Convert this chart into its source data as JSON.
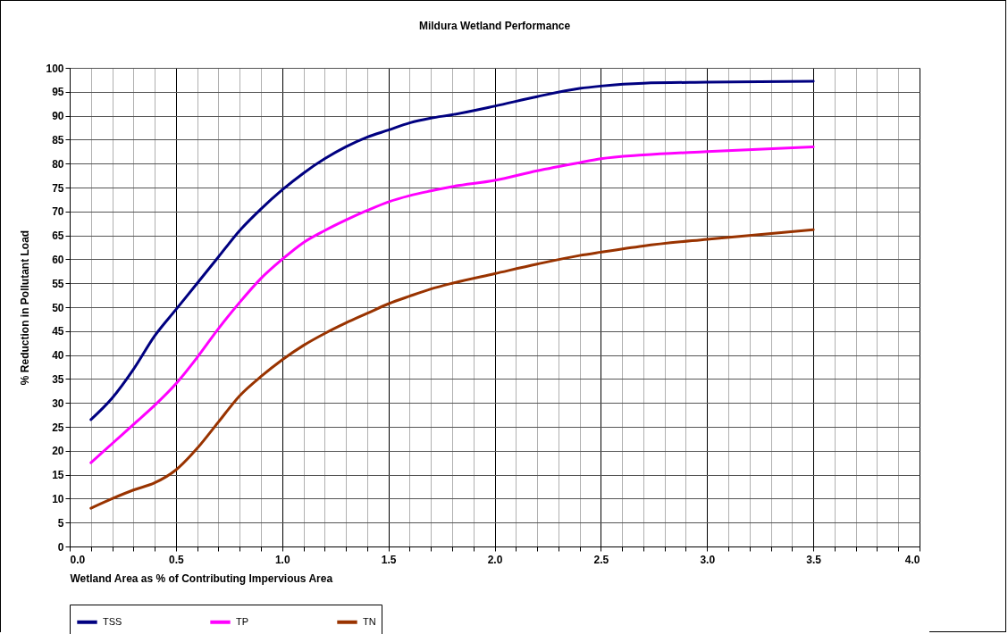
{
  "chart_data": {
    "type": "line",
    "title": "Mildura Wetland Performance",
    "xlabel": "Wetland Area as % of Contributing Impervious Area",
    "ylabel": "% Reduction in Pollutant Load",
    "xlim": [
      0,
      4
    ],
    "ylim": [
      0,
      100
    ],
    "xticks": [
      {
        "value": 0,
        "label": "0.0"
      },
      {
        "value": 0.1,
        "label": null
      },
      {
        "value": 0.2,
        "label": null
      },
      {
        "value": 0.3,
        "label": null
      },
      {
        "value": 0.4,
        "label": null
      },
      0.5,
      {
        "value": 0.6,
        "label": null
      },
      {
        "value": 0.7,
        "label": null
      },
      {
        "value": 0.8,
        "label": null
      },
      {
        "value": 0.9,
        "label": null
      },
      {
        "value": 1,
        "label": "1.0"
      },
      {
        "value": 1.1,
        "label": null
      },
      {
        "value": 1.2,
        "label": null
      },
      {
        "value": 1.3,
        "label": null
      },
      {
        "value": 1.4,
        "label": null
      },
      1.5,
      {
        "value": 1.6,
        "label": null
      },
      {
        "value": 1.7,
        "label": null
      },
      {
        "value": 1.8,
        "label": null
      },
      {
        "value": 1.9,
        "label": null
      },
      {
        "value": 2,
        "label": "2.0"
      },
      {
        "value": 2.1,
        "label": null
      },
      {
        "value": 2.2,
        "label": null
      },
      {
        "value": 2.3,
        "label": null
      },
      {
        "value": 2.4,
        "label": null
      },
      2.5,
      {
        "value": 2.6,
        "label": null
      },
      {
        "value": 2.7,
        "label": null
      },
      {
        "value": 2.8,
        "label": null
      },
      {
        "value": 2.9,
        "label": null
      },
      {
        "value": 3,
        "label": "3.0"
      },
      {
        "value": 3.1,
        "label": null
      },
      {
        "value": 3.2,
        "label": null
      },
      {
        "value": 3.3,
        "label": null
      },
      {
        "value": 3.4,
        "label": null
      },
      3.5,
      {
        "value": 3.6,
        "label": null
      },
      {
        "value": 3.7,
        "label": null
      },
      {
        "value": 3.8,
        "label": null
      },
      {
        "value": 3.9,
        "label": null
      },
      {
        "value": 4,
        "label": "4.0"
      }
    ],
    "yticks": [
      0,
      5,
      10,
      15,
      20,
      25,
      30,
      35,
      40,
      45,
      50,
      55,
      60,
      65,
      70,
      75,
      80,
      85,
      90,
      95,
      100
    ],
    "grid": true,
    "legend": "bottom",
    "marker": "none",
    "line_style": "solid",
    "x": [
      0.1,
      0.2,
      0.3,
      0.4,
      0.5,
      0.6,
      0.7,
      0.8,
      0.9,
      1.0,
      1.1,
      1.2,
      1.3,
      1.4,
      1.5,
      1.6,
      1.7,
      1.8,
      2.0,
      2.2,
      2.4,
      2.5,
      2.7,
      3.0,
      3.5
    ],
    "series": [
      {
        "name": "TSS",
        "color": "#000080",
        "values": [
          26.5,
          31,
          37,
          44,
          49.5,
          55,
          60.5,
          66,
          70.5,
          74.5,
          78,
          81,
          83.5,
          85.5,
          87,
          88.5,
          89.5,
          90.2,
          92,
          94,
          95.7,
          96.2,
          96.8,
          97,
          97.2
        ]
      },
      {
        "name": "TP",
        "color": "#ff00ff",
        "values": [
          17.5,
          21.5,
          25.5,
          29.5,
          34,
          39.5,
          45.5,
          51,
          56,
          60,
          63.5,
          66,
          68.2,
          70.2,
          72,
          73.3,
          74.3,
          75.2,
          76.5,
          78.5,
          80.2,
          81,
          81.8,
          82.5,
          83.5
        ]
      },
      {
        "name": "TN",
        "color": "#993300",
        "values": [
          8,
          10,
          11.8,
          13.3,
          16,
          20.5,
          26,
          31.5,
          35.5,
          39,
          42,
          44.5,
          46.7,
          48.7,
          50.7,
          52.3,
          53.8,
          55,
          57,
          59,
          60.8,
          61.5,
          62.8,
          64.2,
          66.2
        ]
      }
    ]
  }
}
